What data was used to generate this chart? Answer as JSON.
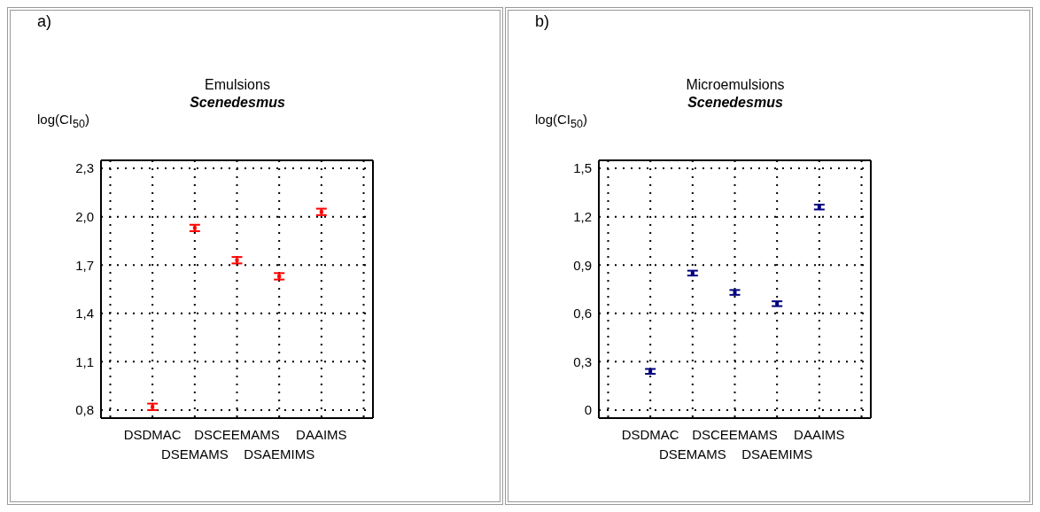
{
  "chart_data": [
    {
      "type": "scatter",
      "title": "Emulsions",
      "subtitle": "Scenedesmus",
      "ylabel": "log(CI$_{50}$)",
      "annotations": [
        "a)"
      ],
      "categories": [
        null,
        "DSDMAC",
        "DSEMAMS",
        "DSCEEMAMS",
        "DSAEMIMS",
        "DAAIMS",
        null
      ],
      "series": [
        {
          "color": "#ff0000",
          "values": [
            null,
            0.82,
            1.93,
            1.73,
            1.63,
            2.03,
            null
          ],
          "errors": [
            null,
            0.02,
            0.02,
            0.02,
            0.02,
            0.02,
            null
          ]
        }
      ],
      "ylim": [
        0.75,
        2.35
      ],
      "yticks": [
        {
          "value": 0.8,
          "label": "0,8"
        },
        {
          "value": 1.1,
          "label": "1,1"
        },
        {
          "value": 1.4,
          "label": "1,4"
        },
        {
          "value": 1.7,
          "label": "1,7"
        },
        {
          "value": 2.0,
          "label": "2,0"
        },
        {
          "value": 2.3,
          "label": "2,3"
        }
      ],
      "grid": true,
      "marker": "square",
      "legend": false
    },
    {
      "type": "scatter",
      "title": "Microemulsions",
      "subtitle": "Scenedesmus",
      "ylabel": "log(CI$_{50}$)",
      "annotations": [
        "b)"
      ],
      "categories": [
        null,
        "DSDMAC",
        "DSEMAMS",
        "DSCEEMAMS",
        "DSAEMIMS",
        "DAAIMS",
        null
      ],
      "series": [
        {
          "color": "#000080",
          "values": [
            null,
            0.24,
            0.85,
            0.73,
            0.66,
            1.26,
            null
          ],
          "errors": [
            null,
            0.015,
            0.015,
            0.015,
            0.015,
            0.015,
            null
          ]
        }
      ],
      "ylim": [
        -0.05,
        1.55
      ],
      "yticks": [
        0,
        {
          "value": 0.3,
          "label": "0,3"
        },
        {
          "value": 0.6,
          "label": "0,6"
        },
        {
          "value": 0.9,
          "label": "0,9"
        },
        {
          "value": 1.2,
          "label": "1,2"
        },
        {
          "value": 1.5,
          "label": "1,5"
        }
      ],
      "grid": true,
      "marker": "square",
      "legend": false
    }
  ]
}
